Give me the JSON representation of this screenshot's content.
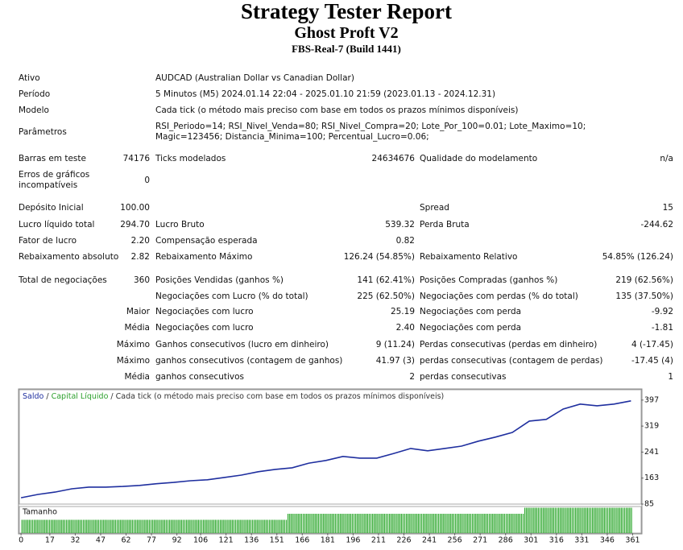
{
  "header": {
    "title": "Strategy Tester Report",
    "subtitle": "Ghost Proft V2",
    "build": "FBS-Real-7 (Build 1441)"
  },
  "info": [
    {
      "label": "Ativo",
      "value": "AUDCAD (Australian Dollar vs Canadian Dollar)"
    },
    {
      "label": "Período",
      "value": "5 Minutos (M5) 2024.01.14 22:04 - 2025.01.10 21:59 (2023.01.13 - 2024.12.31)"
    },
    {
      "label": "Modelo",
      "value": "Cada tick (o método mais preciso com base em todos os prazos mínimos disponíveis)"
    },
    {
      "label": "Parâmetros",
      "value": "RSI_Periodo=14; RSI_Nivel_Venda=80; RSI_Nivel_Compra=20; Lote_Por_100=0.01; Lote_Maximo=10; Magic=123456; Distancia_Minima=100; Percentual_Lucro=0.06;"
    }
  ],
  "stats": [
    {
      "l1": "Barras em teste",
      "v1": "74176",
      "l2": "Ticks modelados",
      "v2": "24634676",
      "l3": "Qualidade do modelamento",
      "v3": "n/a"
    },
    {
      "l1": "Erros de gráficos incompatíveis",
      "v1": "0"
    },
    {
      "l1": "Depósito Inicial",
      "v1": "100.00",
      "l3": "Spread",
      "v3": "15"
    },
    {
      "l1": "Lucro líquido total",
      "v1": "294.70",
      "l2": "Lucro Bruto",
      "v2": "539.32",
      "l3": "Perda Bruta",
      "v3": "-244.62"
    },
    {
      "l1": "Fator de lucro",
      "v1": "2.20",
      "l2": "Compensação esperada",
      "v2": "0.82"
    },
    {
      "l1": "Rebaixamento absoluto",
      "v1": "2.82",
      "l2": "Rebaixamento Máximo",
      "v2": "126.24 (54.85%)",
      "l3": "Rebaixamento Relativo",
      "v3": "54.85% (126.24)"
    },
    {
      "l1": "Total de negociações",
      "v1": "360",
      "l2": "Posições Vendidas (ganhos %)",
      "v2": "141 (62.41%)",
      "l3": "Posições Compradas (ganhos %)",
      "v3": "219 (62.56%)"
    },
    {
      "l2": "Negociações com Lucro (% do total)",
      "v2": "225 (62.50%)",
      "l3": "Negociações com perdas (% do total)",
      "v3": "135 (37.50%)"
    },
    {
      "v1": "Maior",
      "l2": "Negociações com lucro",
      "v2": "25.19",
      "l3": "Negociações com perda",
      "v3": "-9.92"
    },
    {
      "v1": "Média",
      "l2": "Negociações com lucro",
      "v2": "2.40",
      "l3": "Negociações com perda",
      "v3": "-1.81"
    },
    {
      "v1": "Máximo",
      "l2": "Ganhos consecutivos (lucro em dinheiro)",
      "v2": "9 (11.24)",
      "l3": "Perdas consecutivas (perdas em dinheiro)",
      "v3": "4 (-17.45)"
    },
    {
      "v1": "Máximo",
      "l2": "ganhos consecutivos (contagem de ganhos)",
      "v2": "41.97 (3)",
      "l3": "perdas consecutivas (contagem de perdas)",
      "v3": "-17.45 (4)"
    },
    {
      "v1": "Média",
      "l2": "ganhos consecutivos",
      "v2": "2",
      "l3": "perdas consecutivas",
      "v3": "1"
    }
  ],
  "chart_data": {
    "type": "line",
    "legend": [
      {
        "text": "Saldo",
        "color": "#1f2f9f"
      },
      {
        "text": "Capital Líquido",
        "color": "#2ca02c"
      },
      {
        "text": "Cada tick (o método mais preciso com base em todos os prazos mínimos disponíveis)",
        "color": "#333333"
      }
    ],
    "legend_separator": " / ",
    "x": [
      0,
      10,
      20,
      30,
      40,
      50,
      60,
      70,
      80,
      90,
      100,
      110,
      120,
      130,
      140,
      150,
      160,
      170,
      180,
      190,
      200,
      210,
      220,
      230,
      240,
      250,
      260,
      270,
      280,
      290,
      300,
      310,
      320,
      330,
      340,
      350,
      360
    ],
    "series": [
      {
        "name": "Saldo",
        "color": "#1f2f9f",
        "values": [
          104,
          114,
          121,
          131,
          136,
          136,
          138,
          141,
          146,
          150,
          155,
          158,
          165,
          172,
          182,
          189,
          194,
          208,
          216,
          228,
          223,
          223,
          237,
          252,
          245,
          252,
          259,
          274,
          286,
          300,
          334,
          339,
          370,
          385,
          380,
          385,
          394.7
        ]
      }
    ],
    "xlim": [
      -1,
      366
    ],
    "ylim": [
      85,
      428
    ],
    "xticks": [
      0,
      17,
      32,
      47,
      62,
      77,
      92,
      106,
      121,
      136,
      151,
      166,
      181,
      196,
      211,
      226,
      241,
      256,
      271,
      286,
      301,
      316,
      331,
      346,
      361
    ],
    "yticks": [
      85,
      163,
      241,
      319,
      397
    ],
    "size_panel": {
      "label": "Tamanho",
      "color": "#33aa33",
      "lim": [
        -0.012,
        0.032
      ],
      "segments": [
        {
          "from": 0,
          "to": 157,
          "value": 0.01
        },
        {
          "from": 157,
          "to": 297,
          "value": 0.02
        },
        {
          "from": 297,
          "to": 361,
          "value": 0.03
        }
      ]
    }
  }
}
